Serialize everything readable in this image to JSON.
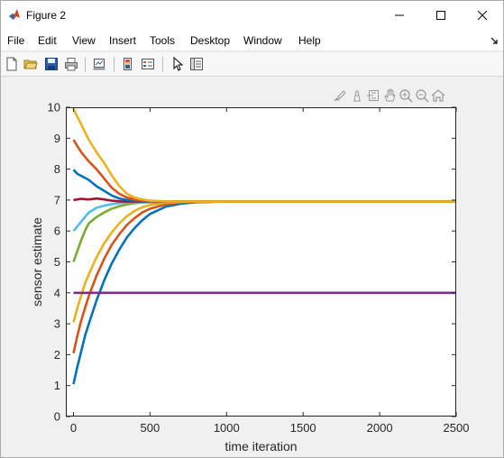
{
  "window": {
    "title": "Figure 2",
    "icon": "matlab-icon"
  },
  "menu": {
    "items": [
      "File",
      "Edit",
      "View",
      "Insert",
      "Tools",
      "Desktop",
      "Window",
      "Help"
    ],
    "dock_icon": "dock-arrow-icon"
  },
  "toolbar": {
    "buttons": [
      "new-figure-icon",
      "open-file-icon",
      "save-icon",
      "print-icon",
      "link-plot-icon",
      "colorbar-icon",
      "legend-icon",
      "select-pointer-icon",
      "property-inspector-icon"
    ]
  },
  "axes_toolbar": {
    "buttons": [
      "brush-icon",
      "data-tips-icon",
      "export-icon",
      "pan-icon",
      "zoom-in-icon",
      "zoom-out-icon",
      "home-icon"
    ]
  },
  "chart_data": {
    "type": "line",
    "title": "",
    "xlabel": "time iteration",
    "ylabel": "sensor estimate",
    "xlim": [
      -50,
      2500
    ],
    "ylim": [
      0,
      10
    ],
    "xticks": [
      "0",
      "500",
      "1000",
      "1500",
      "2000",
      "2500"
    ],
    "yticks": [
      "0",
      "1",
      "2",
      "3",
      "4",
      "5",
      "6",
      "7",
      "8",
      "9",
      "10"
    ],
    "grid": false,
    "x": [
      0,
      25,
      50,
      75,
      100,
      150,
      200,
      250,
      300,
      350,
      400,
      450,
      500,
      600,
      700,
      800,
      1000,
      1500,
      2000,
      2500
    ],
    "series": [
      {
        "color": "#0072BD",
        "values": [
          1.05,
          1.6,
          2.1,
          2.6,
          3.0,
          3.75,
          4.4,
          4.95,
          5.4,
          5.8,
          6.1,
          6.35,
          6.55,
          6.78,
          6.88,
          6.93,
          6.95,
          6.95,
          6.95,
          6.95
        ]
      },
      {
        "color": "#D95319",
        "values": [
          2.05,
          2.6,
          3.1,
          3.5,
          3.9,
          4.55,
          5.1,
          5.55,
          5.9,
          6.2,
          6.42,
          6.6,
          6.72,
          6.86,
          6.92,
          6.94,
          6.95,
          6.95,
          6.95,
          6.95
        ]
      },
      {
        "color": "#EDB120",
        "values": [
          3.05,
          3.5,
          3.9,
          4.3,
          4.6,
          5.15,
          5.6,
          5.95,
          6.25,
          6.48,
          6.65,
          6.77,
          6.84,
          6.91,
          6.94,
          6.95,
          6.95,
          6.95,
          6.95,
          6.95
        ]
      },
      {
        "color": "#7E2F8E",
        "values": [
          4.0,
          4.0,
          4.0,
          4.0,
          4.0,
          4.0,
          4.0,
          4.0,
          4.0,
          4.0,
          4.0,
          4.0,
          4.0,
          4.0,
          4.0,
          4.0,
          4.0,
          4.0,
          4.0,
          4.0
        ]
      },
      {
        "color": "#77AC30",
        "values": [
          5.0,
          5.35,
          5.7,
          6.0,
          6.25,
          6.45,
          6.6,
          6.72,
          6.8,
          6.86,
          6.9,
          6.92,
          6.93,
          6.94,
          6.95,
          6.95,
          6.95,
          6.95,
          6.95,
          6.95
        ]
      },
      {
        "color": "#4DBEEE",
        "values": [
          6.0,
          6.15,
          6.3,
          6.45,
          6.6,
          6.75,
          6.82,
          6.87,
          6.9,
          6.92,
          6.93,
          6.94,
          6.95,
          6.95,
          6.95,
          6.95,
          6.95,
          6.95,
          6.95,
          6.95
        ]
      },
      {
        "color": "#A2142F",
        "values": [
          7.0,
          7.02,
          7.04,
          7.03,
          7.02,
          7.05,
          7.02,
          6.98,
          6.96,
          6.95,
          6.95,
          6.95,
          6.95,
          6.95,
          6.95,
          6.95,
          6.95,
          6.95,
          6.95,
          6.95
        ]
      },
      {
        "color": "#0072BD",
        "values": [
          7.98,
          7.85,
          7.78,
          7.72,
          7.65,
          7.45,
          7.3,
          7.15,
          7.05,
          7.0,
          6.97,
          6.96,
          6.95,
          6.95,
          6.95,
          6.95,
          6.95,
          6.95,
          6.95,
          6.95
        ]
      },
      {
        "color": "#D95319",
        "values": [
          8.95,
          8.75,
          8.55,
          8.4,
          8.25,
          8.0,
          7.7,
          7.4,
          7.2,
          7.08,
          7.02,
          6.98,
          6.96,
          6.95,
          6.95,
          6.95,
          6.95,
          6.95,
          6.95,
          6.95
        ]
      },
      {
        "color": "#EDB120",
        "values": [
          9.95,
          9.7,
          9.45,
          9.2,
          8.95,
          8.55,
          8.2,
          7.8,
          7.45,
          7.2,
          7.08,
          7.02,
          6.98,
          6.96,
          6.95,
          6.95,
          6.95,
          6.95,
          6.95,
          6.95
        ]
      }
    ]
  }
}
